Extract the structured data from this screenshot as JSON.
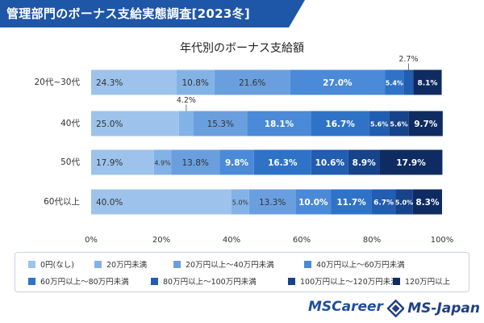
{
  "banner": {
    "title": "管理部門のボーナス支給実態調査[2023冬]",
    "color": "#1e56a8"
  },
  "chart_data": {
    "type": "bar",
    "orientation": "horizontal",
    "stacked": true,
    "title": "年代別のボーナス支給額",
    "categories": [
      "20代~30代",
      "40代",
      "50代",
      "60代以上"
    ],
    "xlim": [
      0,
      100
    ],
    "xticks": [
      "0%",
      "20%",
      "40%",
      "60%",
      "80%",
      "100%"
    ],
    "grid": false,
    "legend_position": "bottom",
    "series": [
      {
        "name": "0円(なし)",
        "color": "#9dc3ec",
        "values": [
          24.3,
          25.0,
          17.9,
          40.0
        ],
        "labels": [
          "24.3%",
          "25.0%",
          "17.9%",
          "40.0%"
        ]
      },
      {
        "name": "20万円未満",
        "color": "#83b2e6",
        "values": [
          10.8,
          4.2,
          4.9,
          5.0
        ],
        "labels": [
          "10.8%",
          "4.2%",
          "4.9%",
          "5.0%"
        ]
      },
      {
        "name": "20万円以上～40万円未満",
        "color": "#6a9fdf",
        "values": [
          21.6,
          15.3,
          13.8,
          13.3
        ],
        "labels": [
          "21.6%",
          "15.3%",
          "13.8%",
          "13.3%"
        ]
      },
      {
        "name": "40万円以上～60万円未満",
        "color": "#4a8ad8",
        "values": [
          27.0,
          18.1,
          9.8,
          10.0
        ],
        "labels": [
          "27.0%",
          "18.1%",
          "9.8%",
          "10.0%"
        ]
      },
      {
        "name": "60万円以上～80万円未満",
        "color": "#2f73c8",
        "values": [
          5.4,
          16.7,
          16.3,
          11.7
        ],
        "labels": [
          "5.4%",
          "16.7%",
          "16.3%",
          "11.7%"
        ]
      },
      {
        "name": "80万円以上～100万円未満",
        "color": "#215db0",
        "values": [
          2.7,
          5.6,
          10.6,
          6.7
        ],
        "labels": [
          "2.7%",
          "5.6%",
          "10.6%",
          "6.7%"
        ]
      },
      {
        "name": "100万円以上～120万円未満",
        "color": "#17438a",
        "values": [
          0.0,
          5.6,
          8.9,
          5.0
        ],
        "labels": [
          "",
          "5.6%",
          "8.9%",
          "5.0%"
        ]
      },
      {
        "name": "120万円以上",
        "color": "#0f2c62",
        "values": [
          8.1,
          9.7,
          17.9,
          8.3
        ],
        "labels": [
          "8.1%",
          "9.7%",
          "17.9%",
          "8.3%"
        ]
      }
    ]
  },
  "footer": {
    "logo_left": "MSCareer",
    "logo_right": "MS-Japan"
  }
}
